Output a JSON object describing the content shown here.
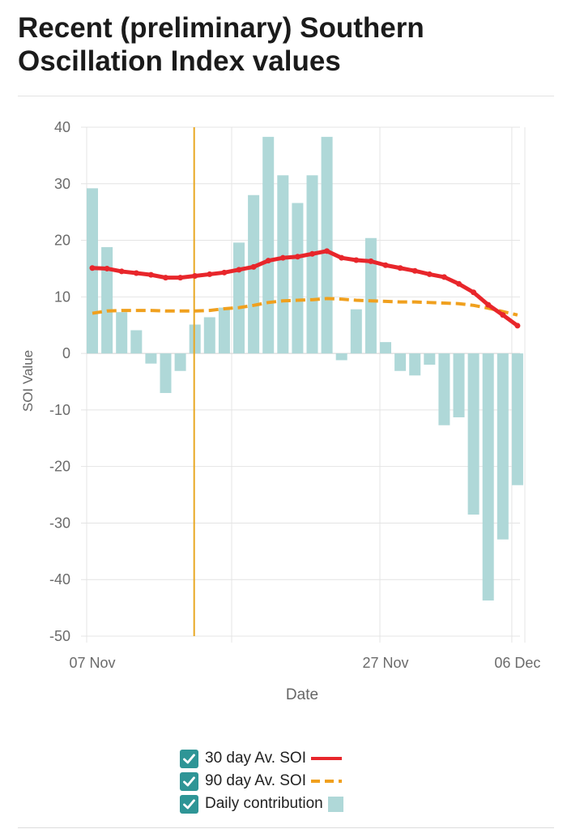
{
  "page": {
    "title": "Recent (preliminary) Southern Oscillation Index values"
  },
  "colors": {
    "bar": "#afd8d8",
    "avg30": "#e8262b",
    "avg90": "#f0a01e",
    "marker": "#e8a824",
    "grid": "#e4e4e4",
    "checkbox": "#2e9596"
  },
  "chart_data": {
    "type": "bar",
    "xlabel": "Date",
    "ylabel": "SOI Value",
    "ylim": [
      -50,
      40
    ],
    "yticks": [
      40,
      30,
      20,
      10,
      0,
      -10,
      -20,
      -30,
      -40,
      -50
    ],
    "xticks": [
      {
        "label": "07 Nov",
        "index": 0
      },
      {
        "label": "27 Nov",
        "index": 20
      },
      {
        "label": "06 Dec",
        "index": 29
      }
    ],
    "grid": true,
    "legend_position": "bottom",
    "marker_line_index": 7,
    "series": [
      {
        "name": "Daily contribution",
        "type": "bar",
        "values": [
          29.2,
          18.8,
          7.3,
          4.1,
          -1.8,
          -7.0,
          -3.1,
          5.1,
          6.4,
          8.1,
          19.6,
          28.0,
          38.3,
          31.5,
          26.6,
          31.5,
          38.3,
          -1.2,
          7.8,
          20.4,
          2.0,
          -3.1,
          -3.9,
          -2.0,
          -12.7,
          -11.3,
          -28.5,
          -43.7,
          -32.9,
          -23.3
        ]
      },
      {
        "name": "30 day Av. SOI",
        "type": "line",
        "values": [
          15.1,
          15.0,
          14.5,
          14.2,
          13.9,
          13.4,
          13.4,
          13.7,
          14.0,
          14.3,
          14.8,
          15.3,
          16.4,
          16.9,
          17.1,
          17.6,
          18.1,
          16.9,
          16.5,
          16.3,
          15.6,
          15.1,
          14.6,
          14.0,
          13.5,
          12.3,
          10.8,
          8.6,
          6.8,
          4.9
        ]
      },
      {
        "name": "90 day Av. SOI",
        "type": "dashed-line",
        "values": [
          7.1,
          7.5,
          7.6,
          7.6,
          7.6,
          7.5,
          7.5,
          7.5,
          7.6,
          7.9,
          8.1,
          8.5,
          9.0,
          9.3,
          9.4,
          9.5,
          9.7,
          9.6,
          9.4,
          9.3,
          9.2,
          9.1,
          9.1,
          9.0,
          8.9,
          8.8,
          8.5,
          8.0,
          7.4,
          6.8
        ]
      }
    ]
  },
  "legend": {
    "items": [
      {
        "label": "30 day Av. SOI"
      },
      {
        "label": "90 day Av. SOI"
      },
      {
        "label": "Daily contribution"
      }
    ]
  }
}
